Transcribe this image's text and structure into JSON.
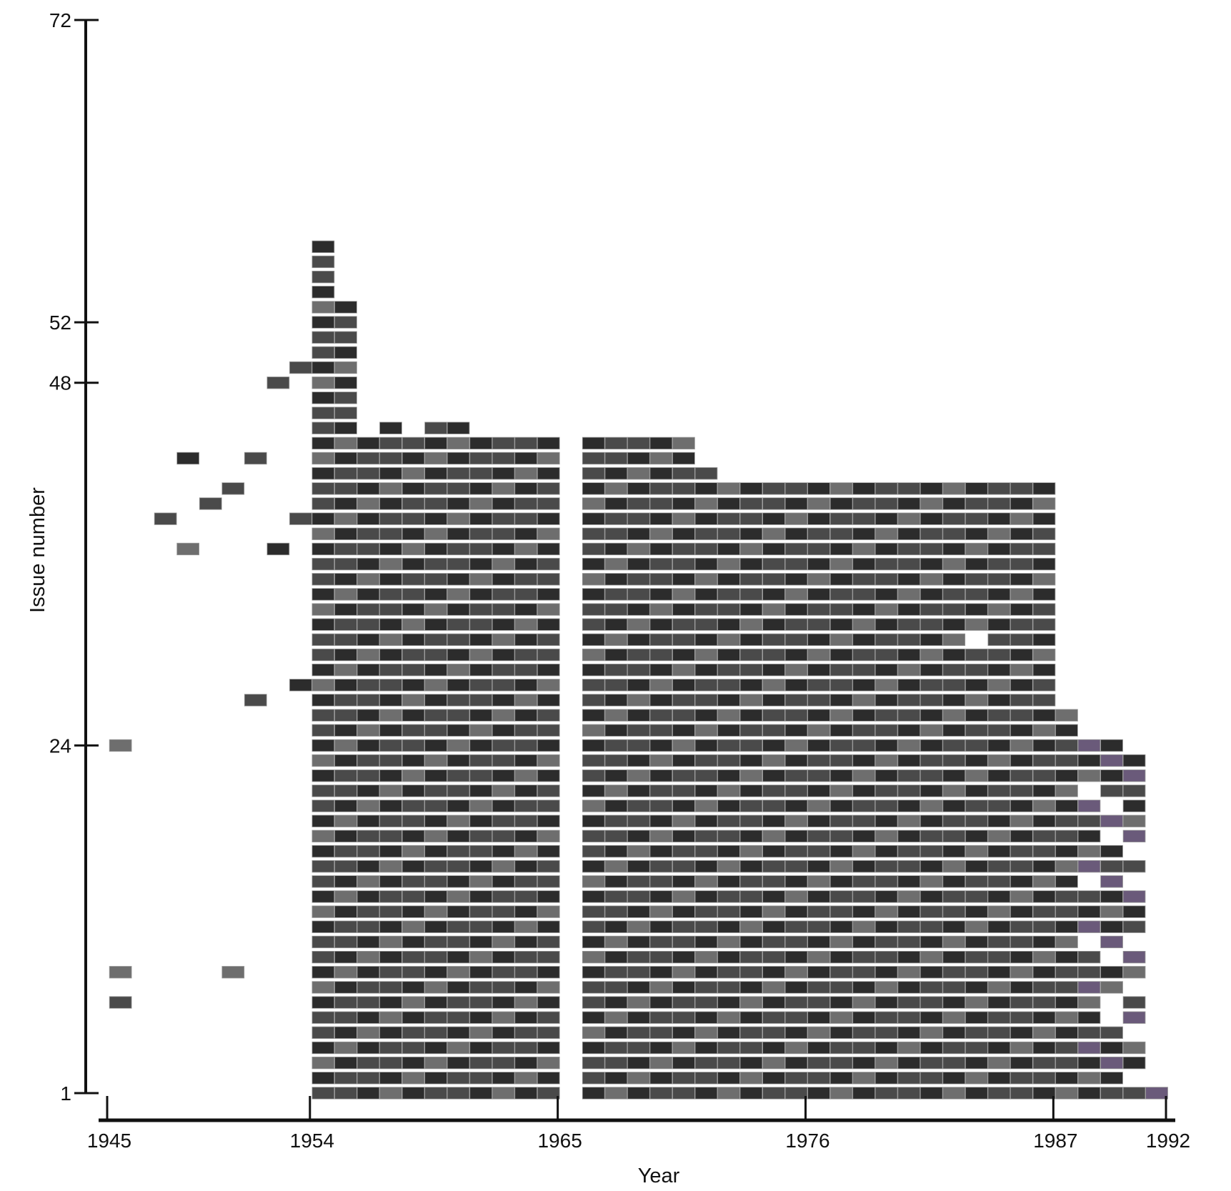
{
  "chart_data": {
    "type": "heatmap",
    "xlabel": "Year",
    "ylabel": "Issue number",
    "x_ticks": [
      {
        "label": "1945",
        "value": 1945
      },
      {
        "label": "1954",
        "value": 1954
      },
      {
        "label": "1965",
        "value": 1965
      },
      {
        "label": "1976",
        "value": 1976
      },
      {
        "label": "1987",
        "value": 1987
      },
      {
        "label": "1992",
        "value": 1992
      }
    ],
    "y_ticks": [
      {
        "label": "1",
        "value": 1
      },
      {
        "label": "24",
        "value": 24
      },
      {
        "label": "48",
        "value": 48
      },
      {
        "label": "52",
        "value": 52
      },
      {
        "label": "72",
        "value": 72
      }
    ],
    "issue_range": [
      1,
      72
    ],
    "year_range": [
      1945,
      1992
    ],
    "colors": {
      "axis": "#111111",
      "cell_dark": "#2c2c2c",
      "cell_mid": "#4a4a4a",
      "cell_light": "#6e6e6e",
      "cell_border": "#9a9a9a",
      "cell_color_late": "#6a5a7a"
    },
    "cells_note_omitted": true,
    "issue_coverage": [
      {
        "issue": 1,
        "spans": [
          [
            1954,
            1964
          ],
          [
            1966,
            1991
          ]
        ]
      },
      {
        "issue": 2,
        "spans": [
          [
            1954,
            1964
          ],
          [
            1966,
            1989
          ]
        ]
      },
      {
        "issue": 3,
        "spans": [
          [
            1954,
            1964
          ],
          [
            1966,
            1990
          ]
        ]
      },
      {
        "issue": 4,
        "spans": [
          [
            1954,
            1964
          ],
          [
            1966,
            1990
          ]
        ]
      },
      {
        "issue": 5,
        "spans": [
          [
            1954,
            1964
          ],
          [
            1966,
            1989
          ]
        ]
      },
      {
        "issue": 6,
        "spans": [
          [
            1954,
            1964
          ],
          [
            1966,
            1988
          ],
          [
            1990,
            1990
          ]
        ]
      },
      {
        "issue": 7,
        "spans": [
          [
            1945,
            1945
          ],
          [
            1954,
            1964
          ],
          [
            1966,
            1988
          ],
          [
            1990,
            1990
          ]
        ]
      },
      {
        "issue": 8,
        "spans": [
          [
            1954,
            1964
          ],
          [
            1966,
            1989
          ]
        ]
      },
      {
        "issue": 9,
        "spans": [
          [
            1945,
            1945
          ],
          [
            1950,
            1950
          ],
          [
            1954,
            1964
          ],
          [
            1966,
            1990
          ]
        ]
      },
      {
        "issue": 10,
        "spans": [
          [
            1954,
            1964
          ],
          [
            1966,
            1988
          ],
          [
            1990,
            1990
          ]
        ]
      },
      {
        "issue": 11,
        "spans": [
          [
            1954,
            1964
          ],
          [
            1966,
            1987
          ],
          [
            1989,
            1989
          ]
        ]
      },
      {
        "issue": 12,
        "spans": [
          [
            1954,
            1964
          ],
          [
            1966,
            1990
          ]
        ]
      },
      {
        "issue": 13,
        "spans": [
          [
            1954,
            1964
          ],
          [
            1966,
            1989
          ],
          [
            1990,
            1990
          ]
        ]
      },
      {
        "issue": 14,
        "spans": [
          [
            1954,
            1964
          ],
          [
            1966,
            1990
          ]
        ]
      },
      {
        "issue": 15,
        "spans": [
          [
            1954,
            1964
          ],
          [
            1966,
            1987
          ],
          [
            1989,
            1989
          ]
        ]
      },
      {
        "issue": 16,
        "spans": [
          [
            1954,
            1964
          ],
          [
            1966,
            1990
          ]
        ]
      },
      {
        "issue": 17,
        "spans": [
          [
            1954,
            1964
          ],
          [
            1966,
            1989
          ]
        ]
      },
      {
        "issue": 18,
        "spans": [
          [
            1954,
            1964
          ],
          [
            1966,
            1988
          ],
          [
            1990,
            1990
          ]
        ]
      },
      {
        "issue": 19,
        "spans": [
          [
            1954,
            1964
          ],
          [
            1966,
            1990
          ]
        ]
      },
      {
        "issue": 20,
        "spans": [
          [
            1954,
            1964
          ],
          [
            1966,
            1988
          ],
          [
            1990,
            1990
          ]
        ]
      },
      {
        "issue": 21,
        "spans": [
          [
            1954,
            1964
          ],
          [
            1966,
            1987
          ],
          [
            1989,
            1989
          ],
          [
            1990,
            1990
          ]
        ]
      },
      {
        "issue": 22,
        "spans": [
          [
            1954,
            1964
          ],
          [
            1966,
            1989
          ],
          [
            1990,
            1990
          ]
        ]
      },
      {
        "issue": 23,
        "spans": [
          [
            1954,
            1964
          ],
          [
            1966,
            1990
          ]
        ]
      },
      {
        "issue": 24,
        "spans": [
          [
            1945,
            1945
          ],
          [
            1954,
            1964
          ],
          [
            1966,
            1989
          ]
        ]
      },
      {
        "issue": 25,
        "spans": [
          [
            1954,
            1964
          ],
          [
            1966,
            1987
          ]
        ]
      },
      {
        "issue": 26,
        "spans": [
          [
            1954,
            1964
          ],
          [
            1966,
            1987
          ]
        ]
      },
      {
        "issue": 27,
        "spans": [
          [
            1951,
            1951
          ],
          [
            1954,
            1964
          ],
          [
            1966,
            1986
          ]
        ]
      },
      {
        "issue": 28,
        "spans": [
          [
            1953,
            1964
          ],
          [
            1966,
            1986
          ]
        ]
      },
      {
        "issue": 29,
        "spans": [
          [
            1954,
            1964
          ],
          [
            1966,
            1986
          ]
        ]
      },
      {
        "issue": 30,
        "spans": [
          [
            1954,
            1964
          ],
          [
            1966,
            1986
          ]
        ]
      },
      {
        "issue": 31,
        "spans": [
          [
            1954,
            1964
          ],
          [
            1966,
            1982
          ],
          [
            1984,
            1986
          ]
        ]
      },
      {
        "issue": 32,
        "spans": [
          [
            1954,
            1964
          ],
          [
            1966,
            1986
          ]
        ]
      },
      {
        "issue": 33,
        "spans": [
          [
            1954,
            1964
          ],
          [
            1966,
            1986
          ]
        ]
      },
      {
        "issue": 34,
        "spans": [
          [
            1954,
            1964
          ],
          [
            1966,
            1986
          ]
        ]
      },
      {
        "issue": 35,
        "spans": [
          [
            1954,
            1964
          ],
          [
            1966,
            1986
          ]
        ]
      },
      {
        "issue": 36,
        "spans": [
          [
            1954,
            1964
          ],
          [
            1966,
            1986
          ]
        ]
      },
      {
        "issue": 37,
        "spans": [
          [
            1948,
            1948
          ],
          [
            1952,
            1952
          ],
          [
            1954,
            1964
          ],
          [
            1966,
            1986
          ]
        ]
      },
      {
        "issue": 38,
        "spans": [
          [
            1954,
            1964
          ],
          [
            1966,
            1986
          ]
        ]
      },
      {
        "issue": 39,
        "spans": [
          [
            1947,
            1947
          ],
          [
            1953,
            1964
          ],
          [
            1966,
            1986
          ]
        ]
      },
      {
        "issue": 40,
        "spans": [
          [
            1949,
            1949
          ],
          [
            1954,
            1956
          ],
          [
            1957,
            1964
          ],
          [
            1966,
            1986
          ]
        ]
      },
      {
        "issue": 41,
        "spans": [
          [
            1950,
            1950
          ],
          [
            1954,
            1964
          ],
          [
            1966,
            1986
          ]
        ]
      },
      {
        "issue": 42,
        "spans": [
          [
            1954,
            1964
          ],
          [
            1966,
            1970
          ],
          [
            1971,
            1971
          ]
        ]
      },
      {
        "issue": 43,
        "spans": [
          [
            1948,
            1948
          ],
          [
            1951,
            1951
          ],
          [
            1954,
            1964
          ],
          [
            1966,
            1970
          ]
        ]
      },
      {
        "issue": 44,
        "spans": [
          [
            1954,
            1964
          ],
          [
            1966,
            1970
          ]
        ]
      },
      {
        "issue": 45,
        "spans": [
          [
            1954,
            1955
          ],
          [
            1957,
            1957
          ],
          [
            1959,
            1960
          ]
        ]
      },
      {
        "issue": 46,
        "spans": [
          [
            1954,
            1955
          ]
        ]
      },
      {
        "issue": 47,
        "spans": [
          [
            1954,
            1955
          ]
        ]
      },
      {
        "issue": 48,
        "spans": [
          [
            1952,
            1952
          ],
          [
            1954,
            1955
          ]
        ]
      },
      {
        "issue": 49,
        "spans": [
          [
            1953,
            1955
          ]
        ]
      },
      {
        "issue": 50,
        "spans": [
          [
            1954,
            1955
          ]
        ]
      },
      {
        "issue": 51,
        "spans": [
          [
            1954,
            1955
          ]
        ]
      },
      {
        "issue": 52,
        "spans": [
          [
            1954,
            1955
          ]
        ]
      },
      {
        "issue": 53,
        "spans": [
          [
            1954,
            1955
          ]
        ]
      },
      {
        "issue": 54,
        "spans": [
          [
            1954,
            1954
          ]
        ]
      },
      {
        "issue": 55,
        "spans": [
          [
            1954,
            1954
          ]
        ]
      },
      {
        "issue": 56,
        "spans": [
          [
            1954,
            1954
          ]
        ]
      },
      {
        "issue": 57,
        "spans": [
          [
            1954,
            1954
          ]
        ]
      }
    ]
  }
}
